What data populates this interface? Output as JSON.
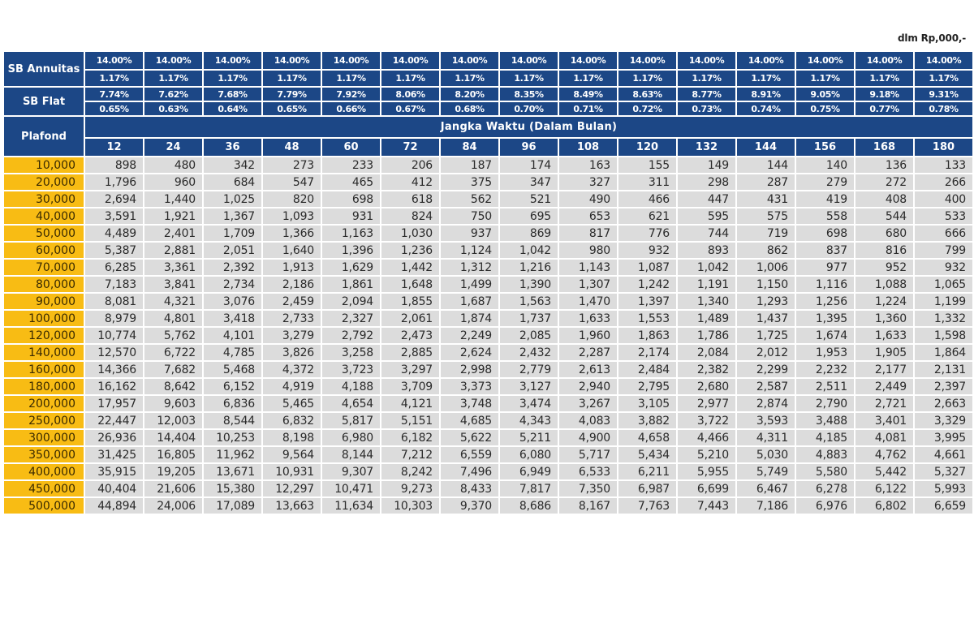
{
  "unit_note": "dlm Rp,000,-",
  "sb_annuitas": {
    "label": "SB Annuitas",
    "annual": [
      "14.00%",
      "14.00%",
      "14.00%",
      "14.00%",
      "14.00%",
      "14.00%",
      "14.00%",
      "14.00%",
      "14.00%",
      "14.00%",
      "14.00%",
      "14.00%",
      "14.00%",
      "14.00%",
      "14.00%"
    ],
    "monthly": [
      "1.17%",
      "1.17%",
      "1.17%",
      "1.17%",
      "1.17%",
      "1.17%",
      "1.17%",
      "1.17%",
      "1.17%",
      "1.17%",
      "1.17%",
      "1.17%",
      "1.17%",
      "1.17%",
      "1.17%"
    ]
  },
  "sb_flat": {
    "label": "SB Flat",
    "annual": [
      "7.74%",
      "7.62%",
      "7.68%",
      "7.79%",
      "7.92%",
      "8.06%",
      "8.20%",
      "8.35%",
      "8.49%",
      "8.63%",
      "8.77%",
      "8.91%",
      "9.05%",
      "9.18%",
      "9.31%"
    ],
    "monthly": [
      "0.65%",
      "0.63%",
      "0.64%",
      "0.65%",
      "0.66%",
      "0.67%",
      "0.68%",
      "0.70%",
      "0.71%",
      "0.72%",
      "0.73%",
      "0.74%",
      "0.75%",
      "0.77%",
      "0.78%"
    ]
  },
  "plafond_label": "Plafond",
  "term_header": "Jangka Waktu (Dalam Bulan)",
  "terms": [
    "12",
    "24",
    "36",
    "48",
    "60",
    "72",
    "84",
    "96",
    "108",
    "120",
    "132",
    "144",
    "156",
    "168",
    "180"
  ],
  "colors": {
    "header_blue": "#1c4786",
    "plafond_yellow": "#f8bc14",
    "cell_gray": "#dcdcdc"
  },
  "rows": [
    {
      "plafond": "10,000",
      "values": [
        "898",
        "480",
        "342",
        "273",
        "233",
        "206",
        "187",
        "174",
        "163",
        "155",
        "149",
        "144",
        "140",
        "136",
        "133"
      ]
    },
    {
      "plafond": "20,000",
      "values": [
        "1,796",
        "960",
        "684",
        "547",
        "465",
        "412",
        "375",
        "347",
        "327",
        "311",
        "298",
        "287",
        "279",
        "272",
        "266"
      ]
    },
    {
      "plafond": "30,000",
      "values": [
        "2,694",
        "1,440",
        "1,025",
        "820",
        "698",
        "618",
        "562",
        "521",
        "490",
        "466",
        "447",
        "431",
        "419",
        "408",
        "400"
      ]
    },
    {
      "plafond": "40,000",
      "values": [
        "3,591",
        "1,921",
        "1,367",
        "1,093",
        "931",
        "824",
        "750",
        "695",
        "653",
        "621",
        "595",
        "575",
        "558",
        "544",
        "533"
      ]
    },
    {
      "plafond": "50,000",
      "values": [
        "4,489",
        "2,401",
        "1,709",
        "1,366",
        "1,163",
        "1,030",
        "937",
        "869",
        "817",
        "776",
        "744",
        "719",
        "698",
        "680",
        "666"
      ]
    },
    {
      "plafond": "60,000",
      "values": [
        "5,387",
        "2,881",
        "2,051",
        "1,640",
        "1,396",
        "1,236",
        "1,124",
        "1,042",
        "980",
        "932",
        "893",
        "862",
        "837",
        "816",
        "799"
      ]
    },
    {
      "plafond": "70,000",
      "values": [
        "6,285",
        "3,361",
        "2,392",
        "1,913",
        "1,629",
        "1,442",
        "1,312",
        "1,216",
        "1,143",
        "1,087",
        "1,042",
        "1,006",
        "977",
        "952",
        "932"
      ]
    },
    {
      "plafond": "80,000",
      "values": [
        "7,183",
        "3,841",
        "2,734",
        "2,186",
        "1,861",
        "1,648",
        "1,499",
        "1,390",
        "1,307",
        "1,242",
        "1,191",
        "1,150",
        "1,116",
        "1,088",
        "1,065"
      ]
    },
    {
      "plafond": "90,000",
      "values": [
        "8,081",
        "4,321",
        "3,076",
        "2,459",
        "2,094",
        "1,855",
        "1,687",
        "1,563",
        "1,470",
        "1,397",
        "1,340",
        "1,293",
        "1,256",
        "1,224",
        "1,199"
      ]
    },
    {
      "plafond": "100,000",
      "values": [
        "8,979",
        "4,801",
        "3,418",
        "2,733",
        "2,327",
        "2,061",
        "1,874",
        "1,737",
        "1,633",
        "1,553",
        "1,489",
        "1,437",
        "1,395",
        "1,360",
        "1,332"
      ]
    },
    {
      "plafond": "120,000",
      "values": [
        "10,774",
        "5,762",
        "4,101",
        "3,279",
        "2,792",
        "2,473",
        "2,249",
        "2,085",
        "1,960",
        "1,863",
        "1,786",
        "1,725",
        "1,674",
        "1,633",
        "1,598"
      ]
    },
    {
      "plafond": "140,000",
      "values": [
        "12,570",
        "6,722",
        "4,785",
        "3,826",
        "3,258",
        "2,885",
        "2,624",
        "2,432",
        "2,287",
        "2,174",
        "2,084",
        "2,012",
        "1,953",
        "1,905",
        "1,864"
      ]
    },
    {
      "plafond": "160,000",
      "values": [
        "14,366",
        "7,682",
        "5,468",
        "4,372",
        "3,723",
        "3,297",
        "2,998",
        "2,779",
        "2,613",
        "2,484",
        "2,382",
        "2,299",
        "2,232",
        "2,177",
        "2,131"
      ]
    },
    {
      "plafond": "180,000",
      "values": [
        "16,162",
        "8,642",
        "6,152",
        "4,919",
        "4,188",
        "3,709",
        "3,373",
        "3,127",
        "2,940",
        "2,795",
        "2,680",
        "2,587",
        "2,511",
        "2,449",
        "2,397"
      ]
    },
    {
      "plafond": "200,000",
      "values": [
        "17,957",
        "9,603",
        "6,836",
        "5,465",
        "4,654",
        "4,121",
        "3,748",
        "3,474",
        "3,267",
        "3,105",
        "2,977",
        "2,874",
        "2,790",
        "2,721",
        "2,663"
      ]
    },
    {
      "plafond": "250,000",
      "values": [
        "22,447",
        "12,003",
        "8,544",
        "6,832",
        "5,817",
        "5,151",
        "4,685",
        "4,343",
        "4,083",
        "3,882",
        "3,722",
        "3,593",
        "3,488",
        "3,401",
        "3,329"
      ]
    },
    {
      "plafond": "300,000",
      "values": [
        "26,936",
        "14,404",
        "10,253",
        "8,198",
        "6,980",
        "6,182",
        "5,622",
        "5,211",
        "4,900",
        "4,658",
        "4,466",
        "4,311",
        "4,185",
        "4,081",
        "3,995"
      ]
    },
    {
      "plafond": "350,000",
      "values": [
        "31,425",
        "16,805",
        "11,962",
        "9,564",
        "8,144",
        "7,212",
        "6,559",
        "6,080",
        "5,717",
        "5,434",
        "5,210",
        "5,030",
        "4,883",
        "4,762",
        "4,661"
      ]
    },
    {
      "plafond": "400,000",
      "values": [
        "35,915",
        "19,205",
        "13,671",
        "10,931",
        "9,307",
        "8,242",
        "7,496",
        "6,949",
        "6,533",
        "6,211",
        "5,955",
        "5,749",
        "5,580",
        "5,442",
        "5,327"
      ]
    },
    {
      "plafond": "450,000",
      "values": [
        "40,404",
        "21,606",
        "15,380",
        "12,297",
        "10,471",
        "9,273",
        "8,433",
        "7,817",
        "7,350",
        "6,987",
        "6,699",
        "6,467",
        "6,278",
        "6,122",
        "5,993"
      ]
    },
    {
      "plafond": "500,000",
      "values": [
        "44,894",
        "24,006",
        "17,089",
        "13,663",
        "11,634",
        "10,303",
        "9,370",
        "8,686",
        "8,167",
        "7,763",
        "7,443",
        "7,186",
        "6,976",
        "6,802",
        "6,659"
      ]
    }
  ]
}
